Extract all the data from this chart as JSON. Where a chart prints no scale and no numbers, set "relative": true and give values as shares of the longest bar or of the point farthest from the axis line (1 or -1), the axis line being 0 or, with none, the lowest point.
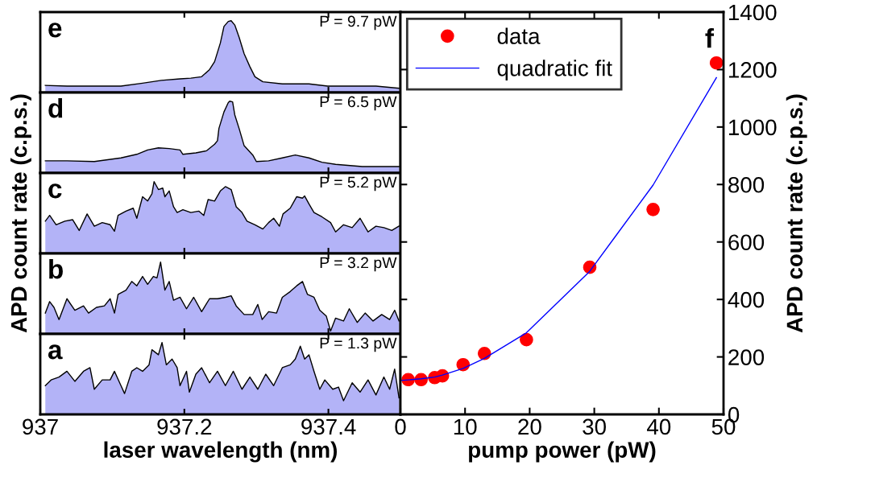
{
  "chart_data": [
    {
      "type": "area",
      "relative": true,
      "color": "#b3b3f7",
      "xlim": [
        937,
        937.5
      ],
      "tick_labels": false,
      "annotations": [
        "e",
        "P = 9.7 pW"
      ],
      "x": [
        937.007,
        937.037,
        937.075,
        937.112,
        937.142,
        937.168,
        937.194,
        937.209,
        937.224,
        937.235,
        937.242,
        937.25,
        937.255,
        937.261,
        937.265,
        937.27,
        937.276,
        937.283,
        937.291,
        937.298,
        937.309,
        937.336,
        937.373,
        937.399,
        937.429,
        937.466,
        937.498
      ],
      "values": [
        0.1,
        0.09,
        0.09,
        0.09,
        0.13,
        0.17,
        0.19,
        0.2,
        0.22,
        0.32,
        0.43,
        0.69,
        0.92,
        0.99,
        1,
        0.94,
        0.77,
        0.54,
        0.36,
        0.22,
        0.15,
        0.12,
        0.12,
        0.09,
        0.09,
        0.09,
        0.06
      ]
    },
    {
      "type": "area",
      "relative": true,
      "color": "#b3b3f7",
      "xlim": [
        937,
        937.5
      ],
      "tick_labels": false,
      "annotations": [
        "d",
        "P = 6.5 pW"
      ],
      "x": [
        937.007,
        937.037,
        937.075,
        937.112,
        937.134,
        937.149,
        937.164,
        937.179,
        937.194,
        937.198,
        937.216,
        937.231,
        937.242,
        937.246,
        937.248,
        937.255,
        937.261,
        937.263,
        937.267,
        937.27,
        937.276,
        937.283,
        937.295,
        937.3,
        937.317,
        937.336,
        937.354,
        937.373,
        937.391,
        937.41,
        937.447,
        937.498
      ],
      "values": [
        0.17,
        0.17,
        0.16,
        0.21,
        0.26,
        0.32,
        0.35,
        0.34,
        0.32,
        0.26,
        0.28,
        0.31,
        0.4,
        0.45,
        0.62,
        0.85,
        0.98,
        1,
        0.99,
        0.81,
        0.62,
        0.38,
        0.25,
        0.16,
        0.17,
        0.21,
        0.25,
        0.21,
        0.15,
        0.12,
        0.09,
        0.09
      ]
    },
    {
      "type": "area",
      "relative": true,
      "color": "#b3b3f7",
      "xlim": [
        937,
        937.5
      ],
      "tick_labels": false,
      "ylabel": "APD count rate (c.p.s.)",
      "annotations": [
        "c",
        "P = 5.2 pW"
      ],
      "x": [
        937.007,
        937.013,
        937.022,
        937.034,
        937.045,
        937.054,
        937.065,
        937.075,
        937.086,
        937.097,
        937.103,
        937.108,
        937.119,
        937.129,
        937.134,
        937.142,
        937.149,
        937.155,
        937.158,
        937.164,
        937.17,
        937.173,
        937.179,
        937.185,
        937.19,
        937.198,
        937.209,
        937.22,
        937.227,
        937.233,
        937.242,
        937.25,
        937.257,
        937.265,
        937.272,
        937.28,
        937.287,
        937.298,
        937.309,
        937.317,
        937.324,
        937.332,
        937.337,
        937.347,
        937.356,
        937.364,
        937.367,
        937.373,
        937.38,
        937.391,
        937.403,
        937.41,
        937.421,
        937.433,
        937.444,
        937.455,
        937.466,
        937.477,
        937.488,
        937.498
      ],
      "values": [
        0.45,
        0.53,
        0.4,
        0.45,
        0.47,
        0.32,
        0.55,
        0.38,
        0.43,
        0.4,
        0.31,
        0.53,
        0.59,
        0.63,
        0.49,
        0.79,
        0.73,
        0.83,
        1,
        0.89,
        0.91,
        0.79,
        0.87,
        0.65,
        0.57,
        0.61,
        0.57,
        0.59,
        0.53,
        0.75,
        0.73,
        0.87,
        0.93,
        0.89,
        0.65,
        0.57,
        0.45,
        0.4,
        0.34,
        0.43,
        0.49,
        0.38,
        0.55,
        0.63,
        0.79,
        0.77,
        0.8,
        0.69,
        0.57,
        0.51,
        0.43,
        0.3,
        0.4,
        0.36,
        0.49,
        0.3,
        0.38,
        0.36,
        0.32,
        0.38
      ]
    },
    {
      "type": "area",
      "relative": true,
      "color": "#b3b3f7",
      "xlim": [
        937,
        937.5
      ],
      "tick_labels": false,
      "annotations": [
        "b",
        "P = 3.2 pW"
      ],
      "x": [
        937.007,
        937.013,
        937.019,
        937.026,
        937.037,
        937.048,
        937.06,
        937.067,
        937.078,
        937.089,
        937.097,
        937.103,
        937.108,
        937.119,
        937.127,
        937.134,
        937.142,
        937.149,
        937.157,
        937.162,
        937.167,
        937.173,
        937.179,
        937.185,
        937.194,
        937.203,
        937.213,
        937.224,
        937.235,
        937.246,
        937.257,
        937.265,
        937.272,
        937.283,
        937.295,
        937.302,
        937.308,
        937.317,
        937.328,
        937.336,
        937.347,
        937.356,
        937.364,
        937.371,
        937.38,
        937.388,
        937.397,
        937.403,
        937.41,
        937.421,
        937.429,
        937.44,
        937.451,
        937.462,
        937.474,
        937.485,
        937.492,
        937.498
      ],
      "values": [
        0.29,
        0.45,
        0.37,
        0.2,
        0.49,
        0.33,
        0.39,
        0.29,
        0.37,
        0.39,
        0.49,
        0.29,
        0.55,
        0.61,
        0.73,
        0.67,
        0.8,
        0.69,
        0.8,
        0.78,
        1,
        0.61,
        0.73,
        0.47,
        0.51,
        0.35,
        0.51,
        0.31,
        0.49,
        0.49,
        0.51,
        0.53,
        0.39,
        0.27,
        0.27,
        0.41,
        0.2,
        0.31,
        0.29,
        0.51,
        0.59,
        0.67,
        0.73,
        0.55,
        0.51,
        0.33,
        0.25,
        0.04,
        0.22,
        0.18,
        0.35,
        0.16,
        0.29,
        0.18,
        0.27,
        0.2,
        0.33,
        0.18
      ]
    },
    {
      "type": "area",
      "relative": true,
      "color": "#b3b3f7",
      "xlim": [
        937,
        937.5
      ],
      "xticks": [
        937,
        937.2,
        937.4
      ],
      "tick_labels": "x",
      "xlabel": "laser wavelength (nm)",
      "annotations": [
        "a",
        "P = 1.3 pW"
      ],
      "x": [
        937.007,
        937.015,
        937.026,
        937.037,
        937.048,
        937.06,
        937.069,
        937.075,
        937.086,
        937.097,
        937.103,
        937.112,
        937.117,
        937.127,
        937.134,
        937.142,
        937.151,
        937.155,
        937.164,
        937.169,
        937.175,
        937.183,
        937.19,
        937.194,
        937.203,
        937.207,
        937.216,
        937.224,
        937.235,
        937.246,
        937.257,
        937.268,
        937.28,
        937.291,
        937.302,
        937.313,
        937.324,
        937.336,
        937.347,
        937.354,
        937.361,
        937.367,
        937.373,
        937.38,
        937.388,
        937.395,
        937.406,
        937.414,
        937.421,
        937.433,
        937.444,
        937.455,
        937.466,
        937.477,
        937.485,
        937.492,
        937.498
      ],
      "values": [
        0.4,
        0.48,
        0.52,
        0.6,
        0.46,
        0.6,
        0.65,
        0.35,
        0.48,
        0.48,
        0.6,
        0.4,
        0.29,
        0.6,
        0.65,
        0.6,
        0.69,
        0.9,
        0.83,
        1,
        0.69,
        0.77,
        0.65,
        0.4,
        0.6,
        0.31,
        0.56,
        0.65,
        0.44,
        0.6,
        0.4,
        0.6,
        0.35,
        0.52,
        0.35,
        0.56,
        0.4,
        0.65,
        0.69,
        0.77,
        0.95,
        0.77,
        0.83,
        0.6,
        0.35,
        0.48,
        0.35,
        0.38,
        0.19,
        0.44,
        0.31,
        0.48,
        0.27,
        0.52,
        0.35,
        0.63,
        0.23
      ]
    },
    {
      "type": "scatter",
      "xlim": [
        0,
        50
      ],
      "xticks": [
        0,
        10,
        20,
        30,
        40,
        50
      ],
      "ylim": [
        0,
        1400
      ],
      "yticks": [
        0,
        200,
        400,
        600,
        800,
        1000,
        1200,
        1400
      ],
      "xlabel": "pump power (pW)",
      "ylabel": "APD count rate (c.p.s.)",
      "legend": "top left",
      "annotations": [
        "f"
      ],
      "series": [
        {
          "name": "data",
          "type": "scatter",
          "marker": "circle",
          "color": "#ff0000",
          "x": [
            1.2,
            3.2,
            5.3,
            6.5,
            9.7,
            13.0,
            19.5,
            29.3,
            39.1,
            48.9
          ],
          "values": [
            121,
            121,
            128,
            134,
            173,
            212,
            260,
            512,
            713,
            1223
          ]
        },
        {
          "name": "quadratic fit",
          "type": "line",
          "color": "#0000ff",
          "x": [
            0,
            1.2,
            3.2,
            5.3,
            6.5,
            9.7,
            13.0,
            19.5,
            29.3,
            39.1,
            48.9
          ],
          "values": [
            118,
            120,
            124,
            130,
            137,
            160,
            195,
            284,
            498,
            798,
            1172
          ]
        }
      ]
    }
  ]
}
